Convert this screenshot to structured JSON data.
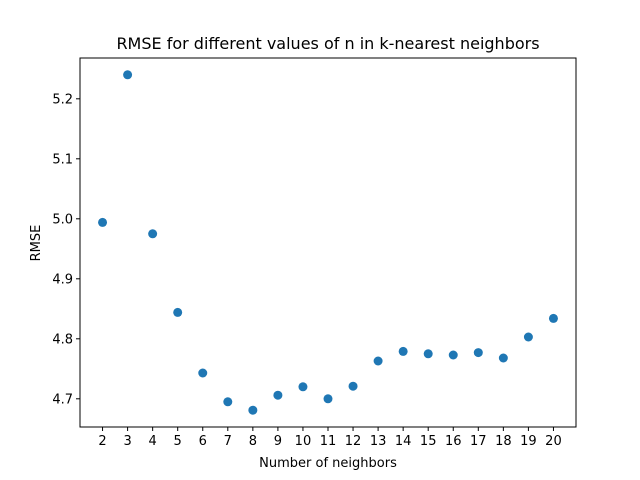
{
  "chart_data": {
    "type": "scatter",
    "title": "RMSE for different values of n in k-nearest neighbors",
    "xlabel": "Number of neighbors",
    "ylabel": "RMSE",
    "x": [
      2,
      3,
      4,
      5,
      6,
      7,
      8,
      9,
      10,
      11,
      12,
      13,
      14,
      15,
      16,
      17,
      18,
      19,
      20
    ],
    "y": [
      4.994,
      5.24,
      4.975,
      4.844,
      4.743,
      4.695,
      4.681,
      4.706,
      4.72,
      4.7,
      4.721,
      4.763,
      4.779,
      4.775,
      4.773,
      4.777,
      4.768,
      4.803,
      4.834
    ],
    "xlim": [
      1.1,
      20.9
    ],
    "ylim": [
      4.653,
      5.268
    ],
    "xticks": [
      2,
      3,
      4,
      5,
      6,
      7,
      8,
      9,
      10,
      11,
      12,
      13,
      14,
      15,
      16,
      17,
      18,
      19,
      20
    ],
    "yticks": [
      4.7,
      4.8,
      4.9,
      5.0,
      5.1,
      5.2
    ],
    "ytick_labels": [
      "4.7",
      "4.8",
      "4.9",
      "5.0",
      "5.1",
      "5.2"
    ],
    "marker_color": "#1f77b4",
    "grid": false
  }
}
